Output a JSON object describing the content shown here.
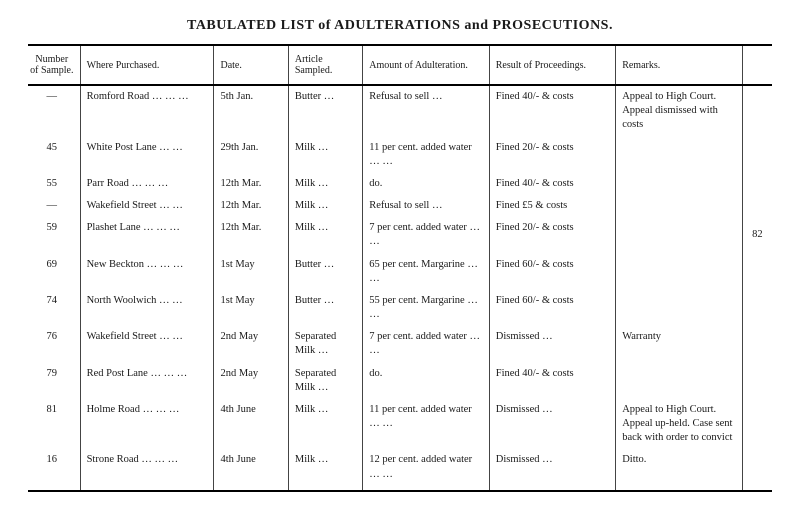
{
  "page_number": "82",
  "title": "TABULATED LIST of ADULTERATIONS and PROSECUTIONS.",
  "columns": [
    "Number of Sample.",
    "Where Purchased.",
    "Date.",
    "Article Sampled.",
    "Amount of Adulteration.",
    "Result of Proceedings.",
    "Remarks."
  ],
  "rows": [
    {
      "num": "—",
      "where": "Romford Road …  …  …",
      "date": "5th  Jan.",
      "article": "Butter …",
      "adulteration": "Refusal to sell …",
      "result": "Fined 40/- & costs",
      "remarks": "Appeal to High Court. Appeal dismissed with costs"
    },
    {
      "num": "45",
      "where": "White Post Lane  …  …",
      "date": "29th Jan.",
      "article": "Milk  …",
      "adulteration": "11 per cent. added water …  …",
      "result": "Fined 20/- & costs",
      "remarks": ""
    },
    {
      "num": "55",
      "where": "Parr Road  …  …  …",
      "date": "12th Mar.",
      "article": "Milk  …",
      "adulteration": "do.",
      "result": "Fined 40/- & costs",
      "remarks": ""
    },
    {
      "num": "—",
      "where": "Wakefield Street  …  …",
      "date": "12th Mar.",
      "article": "Milk  …",
      "adulteration": "Refusal to sell …",
      "result": "Fined £5 & costs",
      "remarks": ""
    },
    {
      "num": "59",
      "where": "Plashet Lane  …  …  …",
      "date": "12th Mar.",
      "article": "Milk  …",
      "adulteration": "7 per cent. added water …  …",
      "result": "Fined 20/- & costs",
      "remarks": ""
    },
    {
      "num": "69",
      "where": "New Beckton  …  …  …",
      "date": "1st  May",
      "article": "Butter …",
      "adulteration": "65 per cent. Mar­garine …  …",
      "result": "Fined 60/- & costs",
      "remarks": ""
    },
    {
      "num": "74",
      "where": "North Woolwich  …  …",
      "date": "1st  May",
      "article": "Butter …",
      "adulteration": "55 per cent. Mar­garine …  …",
      "result": "Fined 60/- & costs",
      "remarks": ""
    },
    {
      "num": "76",
      "where": "Wakefield Street  …  …",
      "date": "2nd May",
      "article": "Separated Milk …",
      "adulteration": "7 per cent. added water …  …",
      "result": "Dismissed   …",
      "remarks": "Warranty"
    },
    {
      "num": "79",
      "where": "Red Post Lane …  …  …",
      "date": "2nd May",
      "article": "Separated Milk …",
      "adulteration": "do.",
      "result": "Fined 40/- & costs",
      "remarks": ""
    },
    {
      "num": "81",
      "where": "Holme Road  …  …  …",
      "date": "4th June",
      "article": "Milk  …",
      "adulteration": "11 per cent. added water …  …",
      "result": "Dismissed   …",
      "remarks": "Appeal to High Court. Appeal up-held. Case sent back with order to con­vict"
    },
    {
      "num": "16",
      "where": "Strone Road  …  …  …",
      "date": "4th June",
      "article": "Milk  …",
      "adulteration": "12 per cent. added water …  …",
      "result": "Dismissed   …",
      "remarks": "Ditto."
    }
  ]
}
